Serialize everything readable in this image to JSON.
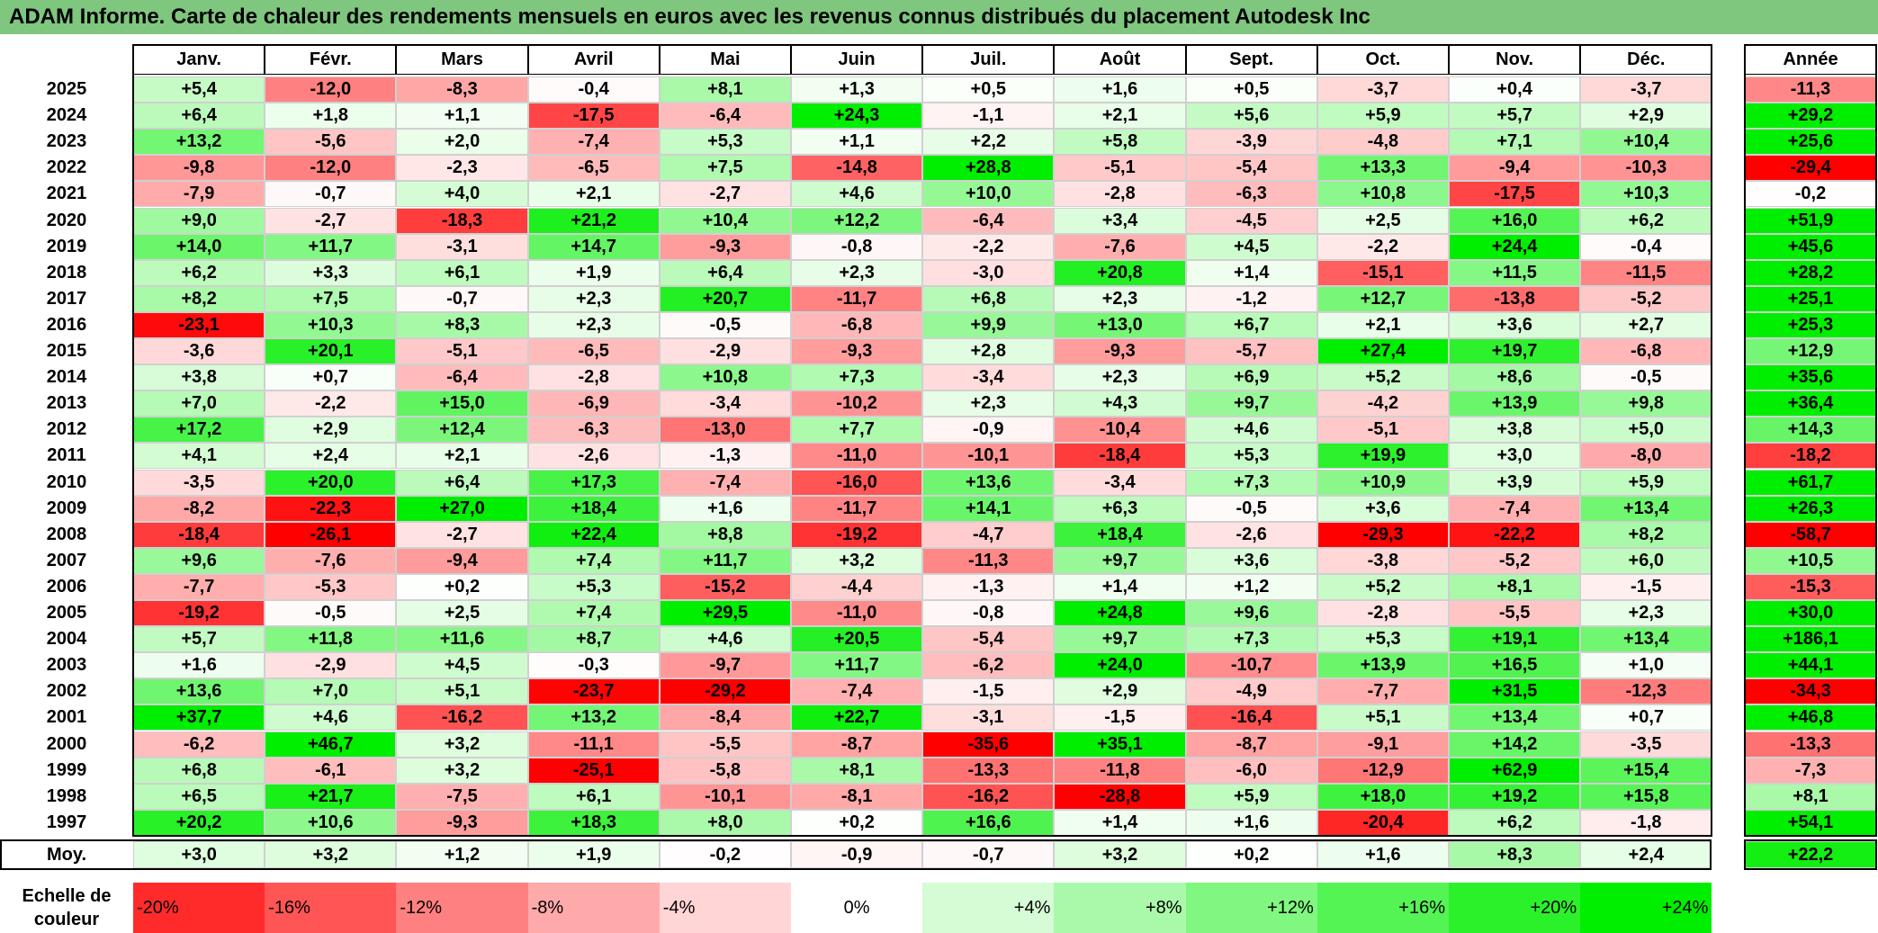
{
  "title": "ADAM Informe. Carte de chaleur des rendements mensuels en euros avec les revenus connus distribués du placement Autodesk Inc",
  "chart_data": {
    "type": "heatmap",
    "title": "ADAM Informe. Carte de chaleur des rendements mensuels en euros avec les revenus connus distribués du placement Autodesk Inc",
    "columns": [
      "Janv.",
      "Févr.",
      "Mars",
      "Avril",
      "Mai",
      "Juin",
      "Juil.",
      "Août",
      "Sept.",
      "Oct.",
      "Nov.",
      "Déc."
    ],
    "year_header": "Année",
    "rows": [
      {
        "year": "2025",
        "values": [
          "+5,4",
          "-12,0",
          "-8,3",
          "-0,4",
          "+8,1",
          "+1,3",
          "+0,5",
          "+1,6",
          "+0,5",
          "-3,7",
          "+0,4",
          "-3,7"
        ],
        "annual": "-11,3"
      },
      {
        "year": "2024",
        "values": [
          "+6,4",
          "+1,8",
          "+1,1",
          "-17,5",
          "-6,4",
          "+24,3",
          "-1,1",
          "+2,1",
          "+5,6",
          "+5,9",
          "+5,7",
          "+2,9"
        ],
        "annual": "+29,2"
      },
      {
        "year": "2023",
        "values": [
          "+13,2",
          "-5,6",
          "+2,0",
          "-7,4",
          "+5,3",
          "+1,1",
          "+2,2",
          "+5,8",
          "-3,9",
          "-4,8",
          "+7,1",
          "+10,4"
        ],
        "annual": "+25,6"
      },
      {
        "year": "2022",
        "values": [
          "-9,8",
          "-12,0",
          "-2,3",
          "-6,5",
          "+7,5",
          "-14,8",
          "+28,8",
          "-5,1",
          "-5,4",
          "+13,3",
          "-9,4",
          "-10,3"
        ],
        "annual": "-29,4"
      },
      {
        "year": "2021",
        "values": [
          "-7,9",
          "-0,7",
          "+4,0",
          "+2,1",
          "-2,7",
          "+4,6",
          "+10,0",
          "-2,8",
          "-6,3",
          "+10,8",
          "-17,5",
          "+10,3"
        ],
        "annual": "-0,2"
      },
      {
        "year": "2020",
        "values": [
          "+9,0",
          "-2,7",
          "-18,3",
          "+21,2",
          "+10,4",
          "+12,2",
          "-6,4",
          "+3,4",
          "-4,5",
          "+2,5",
          "+16,0",
          "+6,2"
        ],
        "annual": "+51,9"
      },
      {
        "year": "2019",
        "values": [
          "+14,0",
          "+11,7",
          "-3,1",
          "+14,7",
          "-9,3",
          "-0,8",
          "-2,2",
          "-7,6",
          "+4,5",
          "-2,2",
          "+24,4",
          "-0,4"
        ],
        "annual": "+45,6"
      },
      {
        "year": "2018",
        "values": [
          "+6,2",
          "+3,3",
          "+6,1",
          "+1,9",
          "+6,4",
          "+2,3",
          "-3,0",
          "+20,8",
          "+1,4",
          "-15,1",
          "+11,5",
          "-11,5"
        ],
        "annual": "+28,2"
      },
      {
        "year": "2017",
        "values": [
          "+8,2",
          "+7,5",
          "-0,7",
          "+2,3",
          "+20,7",
          "-11,7",
          "+6,8",
          "+2,3",
          "-1,2",
          "+12,7",
          "-13,8",
          "-5,2"
        ],
        "annual": "+25,1"
      },
      {
        "year": "2016",
        "values": [
          "-23,1",
          "+10,3",
          "+8,3",
          "+2,3",
          "-0,5",
          "-6,8",
          "+9,9",
          "+13,0",
          "+6,7",
          "+2,1",
          "+3,6",
          "+2,7"
        ],
        "annual": "+25,3"
      },
      {
        "year": "2015",
        "values": [
          "-3,6",
          "+20,1",
          "-5,1",
          "-6,5",
          "-2,9",
          "-9,3",
          "+2,8",
          "-9,3",
          "-5,7",
          "+27,4",
          "+19,7",
          "-6,8"
        ],
        "annual": "+12,9"
      },
      {
        "year": "2014",
        "values": [
          "+3,8",
          "+0,7",
          "-6,4",
          "-2,8",
          "+10,8",
          "+7,3",
          "-3,4",
          "+2,3",
          "+6,9",
          "+5,2",
          "+8,6",
          "-0,5"
        ],
        "annual": "+35,6"
      },
      {
        "year": "2013",
        "values": [
          "+7,0",
          "-2,2",
          "+15,0",
          "-6,9",
          "-3,4",
          "-10,2",
          "+2,3",
          "+4,3",
          "+9,7",
          "-4,2",
          "+13,9",
          "+9,8"
        ],
        "annual": "+36,4"
      },
      {
        "year": "2012",
        "values": [
          "+17,2",
          "+2,9",
          "+12,4",
          "-6,3",
          "-13,0",
          "+7,7",
          "-0,9",
          "-10,4",
          "+4,6",
          "-5,1",
          "+3,8",
          "+5,0"
        ],
        "annual": "+14,3"
      },
      {
        "year": "2011",
        "values": [
          "+4,1",
          "+2,4",
          "+2,1",
          "-2,6",
          "-1,3",
          "-11,0",
          "-10,1",
          "-18,4",
          "+5,3",
          "+19,9",
          "+3,0",
          "-8,0"
        ],
        "annual": "-18,2"
      },
      {
        "year": "2010",
        "values": [
          "-3,5",
          "+20,0",
          "+6,4",
          "+17,3",
          "-7,4",
          "-16,0",
          "+13,6",
          "-3,4",
          "+7,3",
          "+10,9",
          "+3,9",
          "+5,9"
        ],
        "annual": "+61,7"
      },
      {
        "year": "2009",
        "values": [
          "-8,2",
          "-22,3",
          "+27,0",
          "+18,4",
          "+1,6",
          "-11,7",
          "+14,1",
          "+6,3",
          "-0,5",
          "+3,6",
          "-7,4",
          "+13,4"
        ],
        "annual": "+26,3"
      },
      {
        "year": "2008",
        "values": [
          "-18,4",
          "-26,1",
          "-2,7",
          "+22,4",
          "+8,8",
          "-19,2",
          "-4,7",
          "+18,4",
          "-2,6",
          "-29,3",
          "-22,2",
          "+8,2"
        ],
        "annual": "-58,7"
      },
      {
        "year": "2007",
        "values": [
          "+9,6",
          "-7,6",
          "-9,4",
          "+7,4",
          "+11,7",
          "+3,2",
          "-11,3",
          "+9,7",
          "+3,6",
          "-3,8",
          "-5,2",
          "+6,0"
        ],
        "annual": "+10,5"
      },
      {
        "year": "2006",
        "values": [
          "-7,7",
          "-5,3",
          "+0,2",
          "+5,3",
          "-15,2",
          "-4,4",
          "-1,3",
          "+1,4",
          "+1,2",
          "+5,2",
          "+8,1",
          "-1,5"
        ],
        "annual": "-15,3"
      },
      {
        "year": "2005",
        "values": [
          "-19,2",
          "-0,5",
          "+2,5",
          "+7,4",
          "+29,5",
          "-11,0",
          "-0,8",
          "+24,8",
          "+9,6",
          "-2,8",
          "-5,5",
          "+2,3"
        ],
        "annual": "+30,0"
      },
      {
        "year": "2004",
        "values": [
          "+5,7",
          "+11,8",
          "+11,6",
          "+8,7",
          "+4,6",
          "+20,5",
          "-5,4",
          "+9,7",
          "+7,3",
          "+5,3",
          "+19,1",
          "+13,4"
        ],
        "annual": "+186,1"
      },
      {
        "year": "2003",
        "values": [
          "+1,6",
          "-2,9",
          "+4,5",
          "-0,3",
          "-9,7",
          "+11,7",
          "-6,2",
          "+24,0",
          "-10,7",
          "+13,9",
          "+16,5",
          "+1,0"
        ],
        "annual": "+44,1"
      },
      {
        "year": "2002",
        "values": [
          "+13,6",
          "+7,0",
          "+5,1",
          "-23,7",
          "-29,2",
          "-7,4",
          "-1,5",
          "+2,9",
          "-4,9",
          "-7,7",
          "+31,5",
          "-12,3"
        ],
        "annual": "-34,3"
      },
      {
        "year": "2001",
        "values": [
          "+37,7",
          "+4,6",
          "-16,2",
          "+13,2",
          "-8,4",
          "+22,7",
          "-3,1",
          "-1,5",
          "-16,4",
          "+5,1",
          "+13,4",
          "+0,7"
        ],
        "annual": "+46,8"
      },
      {
        "year": "2000",
        "values": [
          "-6,2",
          "+46,7",
          "+3,2",
          "-11,1",
          "-5,5",
          "-8,7",
          "-35,6",
          "+35,1",
          "-8,7",
          "-9,1",
          "+14,2",
          "-3,5"
        ],
        "annual": "-13,3"
      },
      {
        "year": "1999",
        "values": [
          "+6,8",
          "-6,1",
          "+3,2",
          "-25,1",
          "-5,8",
          "+8,1",
          "-13,3",
          "-11,8",
          "-6,0",
          "-12,9",
          "+62,9",
          "+15,4"
        ],
        "annual": "-7,3"
      },
      {
        "year": "1998",
        "values": [
          "+6,5",
          "+21,7",
          "-7,5",
          "+6,1",
          "-10,1",
          "-8,1",
          "-16,2",
          "-28,8",
          "+5,9",
          "+18,0",
          "+19,2",
          "+15,8"
        ],
        "annual": "+8,1"
      },
      {
        "year": "1997",
        "values": [
          "+20,2",
          "+10,6",
          "-9,3",
          "+18,3",
          "+8,0",
          "+0,2",
          "+16,6",
          "+1,4",
          "+1,6",
          "-20,4",
          "+6,2",
          "-1,8"
        ],
        "annual": "+54,1"
      }
    ],
    "average": {
      "label": "Moy.",
      "values": [
        "+3,0",
        "+3,2",
        "+1,2",
        "+1,9",
        "-0,2",
        "-0,9",
        "-0,7",
        "+3,2",
        "+0,2",
        "+1,6",
        "+8,3",
        "+2,4"
      ],
      "annual": "+22,2"
    },
    "legend": {
      "label": "Echelle de couleur",
      "items": [
        "-20%",
        "-16%",
        "-12%",
        "-8%",
        "-4%",
        "0%",
        "+4%",
        "+8%",
        "+12%",
        "+16%",
        "+20%",
        "+24%"
      ]
    },
    "colors": {
      "neg_max": "#ff0000",
      "pos_max": "#00ee00",
      "zero": "#ffffff",
      "title_bg": "#7fc67f"
    }
  }
}
